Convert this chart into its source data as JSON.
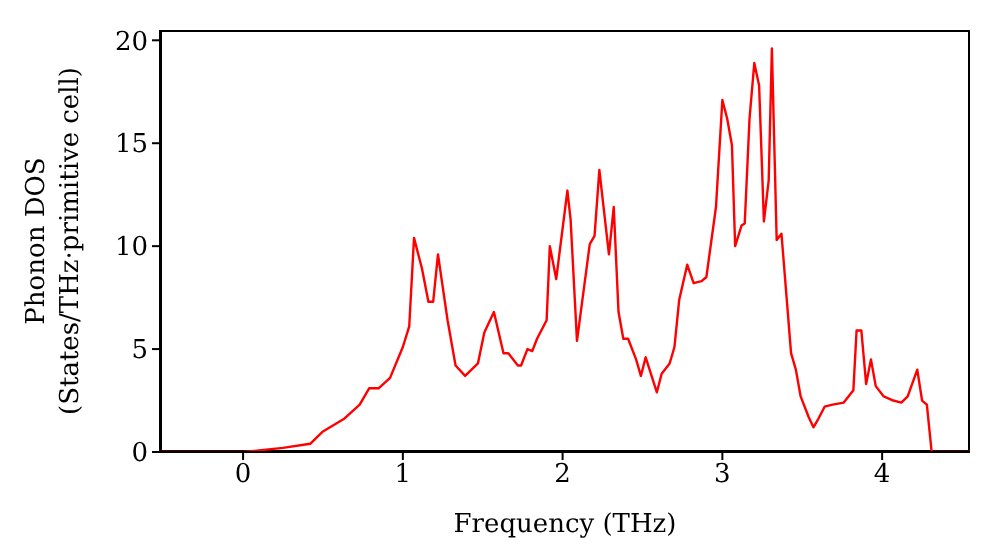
{
  "chart_data": {
    "type": "line",
    "xlabel": "Frequency (THz)",
    "ylabel": "Phonon DOS\n(States/THz·primitive cell)",
    "xlim": [
      -0.52,
      4.55
    ],
    "ylim": [
      0,
      20.5
    ],
    "xticks": [
      0,
      1,
      2,
      3,
      4
    ],
    "yticks": [
      0,
      5,
      10,
      15,
      20
    ],
    "grid": false,
    "marker": "none",
    "line_style": "solid",
    "x": [
      -0.52,
      0,
      0.25,
      0.42,
      0.5,
      0.63,
      0.73,
      0.79,
      0.85,
      0.92,
      1.0,
      1.04,
      1.07,
      1.12,
      1.16,
      1.19,
      1.22,
      1.28,
      1.33,
      1.39,
      1.47,
      1.51,
      1.57,
      1.63,
      1.66,
      1.72,
      1.74,
      1.78,
      1.81,
      1.84,
      1.9,
      1.92,
      1.96,
      2.03,
      2.05,
      2.09,
      2.17,
      2.2,
      2.23,
      2.29,
      2.32,
      2.35,
      2.38,
      2.41,
      2.46,
      2.49,
      2.52,
      2.59,
      2.62,
      2.67,
      2.7,
      2.73,
      2.78,
      2.82,
      2.87,
      2.9,
      2.96,
      3.0,
      3.03,
      3.06,
      3.08,
      3.12,
      3.14,
      3.17,
      3.2,
      3.23,
      3.26,
      3.29,
      3.31,
      3.34,
      3.37,
      3.43,
      3.46,
      3.49,
      3.54,
      3.57,
      3.6,
      3.64,
      3.69,
      3.76,
      3.82,
      3.84,
      3.87,
      3.9,
      3.93,
      3.96,
      4.01,
      4.07,
      4.12,
      4.16,
      4.22,
      4.25,
      4.28,
      4.31,
      4.55
    ],
    "series": [
      {
        "color": "#ff0000",
        "values": [
          0,
          0,
          0.2,
          0.4,
          1.0,
          1.6,
          2.3,
          3.1,
          3.1,
          3.6,
          5.1,
          6.1,
          10.4,
          8.9,
          7.3,
          7.3,
          9.6,
          6.4,
          4.2,
          3.7,
          4.3,
          5.8,
          6.8,
          4.8,
          4.8,
          4.2,
          4.2,
          5.0,
          4.9,
          5.5,
          6.4,
          10.0,
          8.4,
          12.7,
          11.3,
          5.4,
          10.1,
          10.5,
          13.7,
          9.6,
          11.9,
          6.8,
          5.5,
          5.5,
          4.5,
          3.7,
          4.6,
          2.9,
          3.8,
          4.3,
          5.1,
          7.4,
          9.1,
          8.2,
          8.3,
          8.5,
          11.9,
          17.1,
          16.2,
          14.9,
          10.0,
          11.0,
          11.1,
          16.2,
          18.9,
          17.8,
          11.2,
          13.2,
          19.6,
          10.3,
          10.6,
          4.8,
          4.0,
          2.7,
          1.7,
          1.2,
          1.6,
          2.2,
          2.3,
          2.4,
          3.0,
          5.9,
          5.9,
          3.3,
          4.5,
          3.2,
          2.7,
          2.5,
          2.4,
          2.7,
          4.0,
          2.5,
          2.3,
          0,
          0
        ]
      }
    ]
  }
}
